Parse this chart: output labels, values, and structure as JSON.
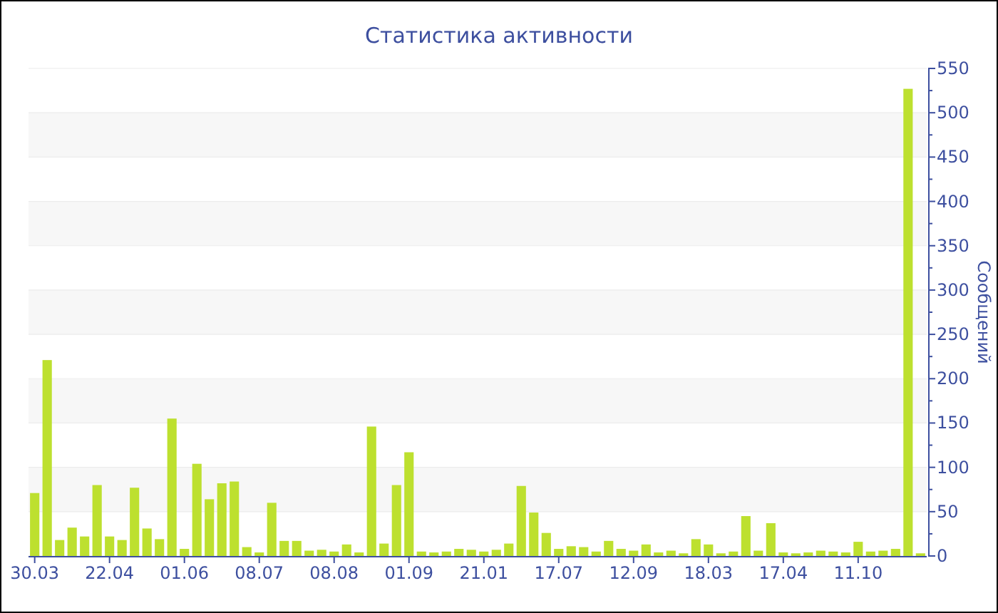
{
  "chart_data": {
    "type": "bar",
    "title": "Статистика активности",
    "ylabel": "Сообщений",
    "color": "#bde02f",
    "categories": [
      "30.03",
      null,
      null,
      null,
      null,
      null,
      "22.04",
      null,
      null,
      null,
      null,
      null,
      "01.06",
      null,
      null,
      null,
      null,
      null,
      "08.07",
      null,
      null,
      null,
      null,
      null,
      "08.08",
      null,
      null,
      null,
      null,
      null,
      "01.09",
      null,
      null,
      null,
      null,
      null,
      "21.01",
      null,
      null,
      null,
      null,
      null,
      "17.07",
      null,
      null,
      null,
      null,
      null,
      "12.09",
      null,
      null,
      null,
      null,
      null,
      "18.03",
      null,
      null,
      null,
      null,
      null,
      "17.04",
      null,
      null,
      null,
      null,
      null,
      "11.10",
      null,
      null,
      null,
      null,
      null
    ],
    "values": [
      71,
      221,
      18,
      32,
      22,
      80,
      22,
      18,
      77,
      31,
      19,
      155,
      8,
      104,
      64,
      82,
      84,
      10,
      4,
      60,
      17,
      17,
      6,
      7,
      5,
      13,
      4,
      146,
      14,
      80,
      117,
      5,
      4,
      5,
      8,
      7,
      5,
      7,
      14,
      79,
      49,
      26,
      8,
      11,
      10,
      5,
      17,
      8,
      6,
      13,
      4,
      6,
      3,
      19,
      13,
      3,
      5,
      45,
      6,
      37,
      4,
      3,
      4,
      6,
      5,
      4,
      16,
      5,
      6,
      8,
      527,
      3
    ],
    "ylim": [
      0,
      550
    ],
    "yticks": [
      0,
      {
        "value": 25,
        "label": null
      },
      50,
      {
        "value": 75,
        "label": null
      },
      100,
      {
        "value": 125,
        "label": null
      },
      150,
      {
        "value": 175,
        "label": null
      },
      200,
      {
        "value": 225,
        "label": null
      },
      250,
      {
        "value": 275,
        "label": null
      },
      300,
      {
        "value": 325,
        "label": null
      },
      350,
      {
        "value": 375,
        "label": null
      },
      400,
      {
        "value": 425,
        "label": null
      },
      450,
      {
        "value": 475,
        "label": null
      },
      500,
      {
        "value": 525,
        "label": null
      },
      550
    ],
    "grid": "y"
  }
}
